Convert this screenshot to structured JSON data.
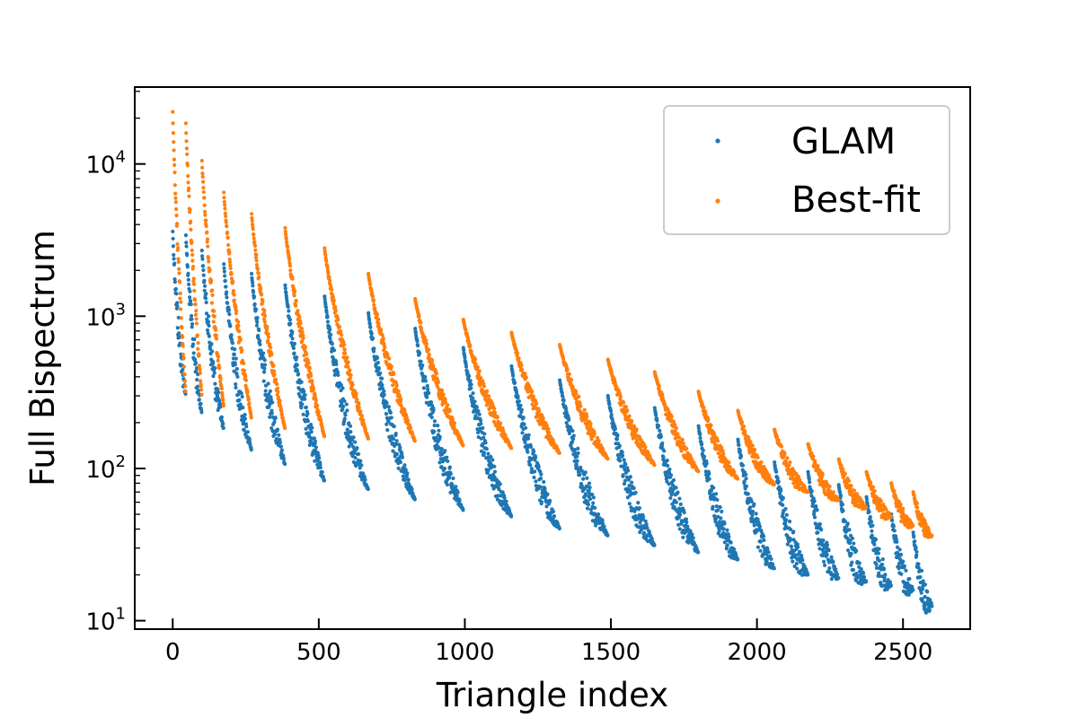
{
  "chart_data": {
    "type": "scatter",
    "title": "",
    "xlabel": "Triangle index",
    "ylabel": "Full Bispectrum",
    "xlim": [
      -130,
      2730
    ],
    "ylim": [
      8.8,
      32000
    ],
    "yscale": "log",
    "grid": false,
    "legend_position": "top-right",
    "x_ticks": [
      {
        "value": 0,
        "label": "0"
      },
      {
        "value": 500,
        "label": "500"
      },
      {
        "value": 1000,
        "label": "1000"
      },
      {
        "value": 1500,
        "label": "1500"
      },
      {
        "value": 2000,
        "label": "2000"
      },
      {
        "value": 2500,
        "label": "2500"
      }
    ],
    "y_ticks": [
      {
        "value": 10,
        "base": "10",
        "exp": "1"
      },
      {
        "value": 100,
        "base": "10",
        "exp": "2"
      },
      {
        "value": 1000,
        "base": "10",
        "exp": "3"
      },
      {
        "value": 10000,
        "base": "10",
        "exp": "4"
      }
    ],
    "n_points": 2600,
    "series": [
      {
        "name": "GLAM",
        "color": "#1f77b4",
        "block_start_index": [
          0,
          45,
          100,
          175,
          270,
          385,
          520,
          670,
          830,
          995,
          1160,
          1325,
          1490,
          1650,
          1800,
          1935,
          2060,
          2175,
          2280,
          2375,
          2460,
          2535,
          2600
        ],
        "block_peak_value": [
          3600,
          3400,
          2700,
          2200,
          1900,
          1600,
          1350,
          1050,
          830,
          620,
          470,
          380,
          300,
          250,
          190,
          155,
          110,
          95,
          78,
          65,
          50,
          38
        ],
        "block_min_value": [
          300,
          230,
          180,
          130,
          105,
          82,
          72,
          62,
          53,
          48,
          40,
          36,
          31,
          28,
          25,
          22,
          20,
          19,
          18,
          17,
          16,
          12.5
        ]
      },
      {
        "name": "Best-fit",
        "color": "#ff7f0e",
        "block_start_index": [
          0,
          45,
          100,
          175,
          270,
          385,
          520,
          670,
          830,
          995,
          1160,
          1325,
          1490,
          1650,
          1800,
          1935,
          2060,
          2175,
          2280,
          2375,
          2460,
          2535,
          2600
        ],
        "block_peak_value": [
          22000,
          18500,
          10500,
          6500,
          4700,
          3800,
          2800,
          1900,
          1300,
          950,
          780,
          650,
          520,
          430,
          320,
          240,
          180,
          145,
          115,
          95,
          80,
          70
        ],
        "block_min_value": [
          300,
          290,
          250,
          210,
          180,
          160,
          155,
          150,
          140,
          135,
          125,
          115,
          105,
          95,
          85,
          78,
          70,
          62,
          55,
          48,
          42,
          36
        ]
      }
    ]
  }
}
